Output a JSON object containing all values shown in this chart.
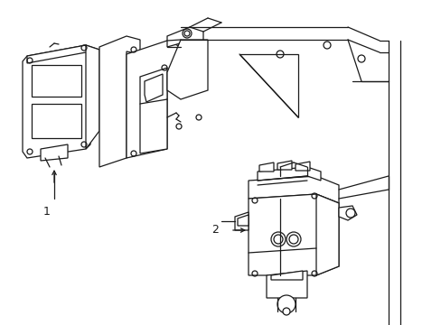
{
  "background_color": "#ffffff",
  "line_color": "#1a1a1a",
  "line_width": 0.9,
  "label1": "1",
  "label2": "2",
  "figsize": [
    4.89,
    3.6
  ],
  "dpi": 100
}
